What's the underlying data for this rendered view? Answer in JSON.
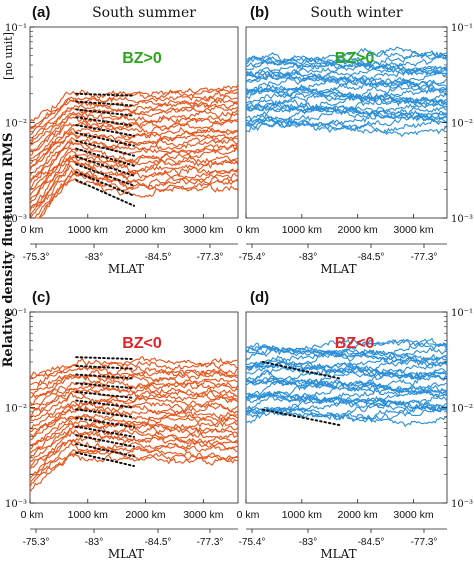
{
  "y_axis_label": "Relative density fluctuaton RMS",
  "y_axis_unit": "[no unit]",
  "x_axis_label": "MLAT",
  "colors": {
    "orange": "#e8541a",
    "blue": "#2b8fd8",
    "green": "#2fa51c",
    "red": "#e0232a",
    "dotted": "#111111"
  },
  "chart_data": [
    {
      "panel": "(a)",
      "title": "South summer",
      "condition": "BZ>0",
      "condition_color": "green",
      "type": "line",
      "yscale": "log",
      "ylim": [
        0.001,
        0.1
      ],
      "yticks": [
        "10⁻³",
        "10⁻²",
        "10⁻¹"
      ],
      "ytick_side": "left",
      "xlim": [
        0,
        3600
      ],
      "xticks_km": [
        "0 km",
        "1000 km",
        "2000 km",
        "3000 km"
      ],
      "mlat_ticks": [
        "-75.3°",
        "-83°",
        "-84.5°",
        "-77.3°"
      ],
      "series_color": "orange",
      "shape": "peak",
      "series_count": 28,
      "level_range": [
        0.0025,
        0.02
      ],
      "dotted_overlay": [
        800,
        1800
      ]
    },
    {
      "panel": "(b)",
      "title": "South winter",
      "condition": "BZ>0",
      "condition_color": "green",
      "type": "line",
      "yscale": "log",
      "ylim": [
        0.001,
        0.1
      ],
      "yticks": [
        "10⁻³",
        "10⁻²",
        "10⁻¹"
      ],
      "ytick_side": "right",
      "xlim": [
        0,
        3600
      ],
      "xticks_km": [
        "0 km",
        "1000 km",
        "2000 km",
        "3000 km"
      ],
      "mlat_ticks": [
        "-75.4°",
        "-83°",
        "-84.5°",
        "-77.3°"
      ],
      "series_color": "blue",
      "shape": "flat",
      "series_count": 30,
      "level_range": [
        0.009,
        0.05
      ],
      "dotted_overlay": null
    },
    {
      "panel": "(c)",
      "title": "",
      "condition": "BZ<0",
      "condition_color": "red",
      "type": "line",
      "yscale": "log",
      "ylim": [
        0.001,
        0.1
      ],
      "yticks": [
        "10⁻³",
        "10⁻²",
        "10⁻¹"
      ],
      "ytick_side": "left",
      "xlim": [
        0,
        3600
      ],
      "xticks_km": [
        "0 km",
        "1000 km",
        "2000 km",
        "3000 km"
      ],
      "mlat_ticks": [
        "-75.3°",
        "-83°",
        "-84.5°",
        "-77.3°"
      ],
      "series_color": "orange",
      "shape": "hump",
      "series_count": 28,
      "level_range": [
        0.003,
        0.03
      ],
      "dotted_overlay": [
        800,
        1800
      ]
    },
    {
      "panel": "(d)",
      "title": "",
      "condition": "BZ<0",
      "condition_color": "red",
      "type": "line",
      "yscale": "log",
      "ylim": [
        0.001,
        0.1
      ],
      "yticks": [
        "10⁻³",
        "10⁻²",
        "10⁻¹"
      ],
      "ytick_side": "right",
      "xlim": [
        0,
        3600
      ],
      "xticks_km": [
        "0 km",
        "1000 km",
        "2000 km",
        "3000 km"
      ],
      "mlat_ticks": [
        "-75.4°",
        "-83°",
        "-84.5°",
        "-77.3°"
      ],
      "series_color": "blue",
      "shape": "flat",
      "series_count": 30,
      "level_range": [
        0.008,
        0.045
      ],
      "dotted_overlay": [
        300,
        1700
      ]
    }
  ]
}
